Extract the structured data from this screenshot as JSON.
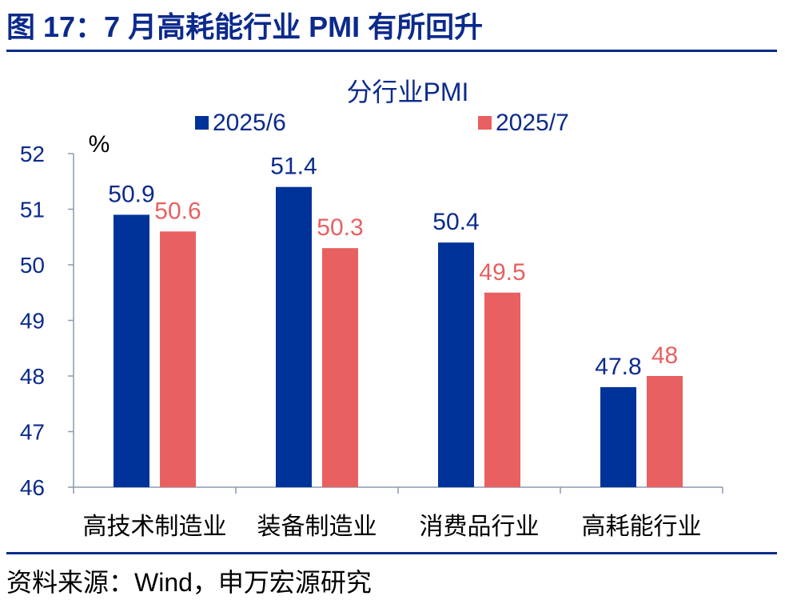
{
  "figure": {
    "title": "图 17：7 月高耗能行业 PMI 有所回升",
    "source": "资料来源：Wind，申万宏源研究"
  },
  "colors": {
    "series_2025_6": "#003399",
    "series_2025_7": "#e86060",
    "title": "#0b2a8c",
    "axis": "#8a9bb0"
  },
  "chart_data": {
    "type": "bar",
    "title": "分行业PMI",
    "ylabel": "%",
    "xlabel": "",
    "ylim": [
      46,
      52
    ],
    "yticks": [
      46,
      47,
      48,
      49,
      50,
      51,
      52
    ],
    "categories": [
      "高技术制造业",
      "装备制造业",
      "消费品行业",
      "高耗能行业"
    ],
    "series": [
      {
        "name": "2025/6",
        "values": [
          50.9,
          51.4,
          50.4,
          47.8
        ]
      },
      {
        "name": "2025/7",
        "values": [
          50.6,
          50.3,
          49.5,
          48
        ]
      }
    ],
    "data_labels": true,
    "grid": false,
    "legend_position": "top"
  }
}
